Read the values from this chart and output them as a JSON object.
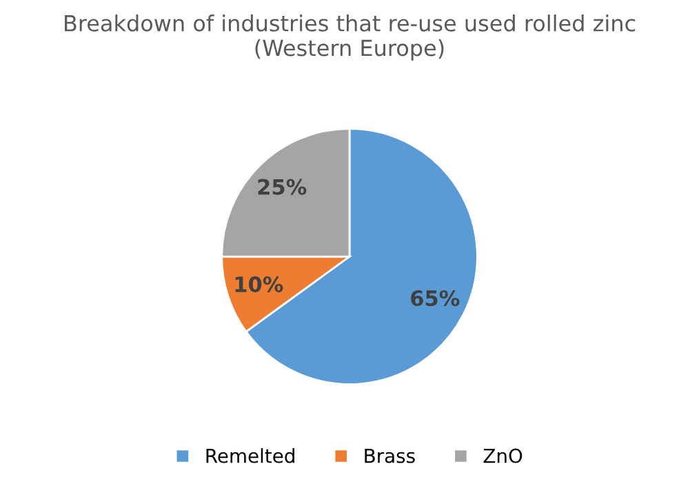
{
  "chart_data": {
    "type": "pie",
    "title": "Breakdown of industries that re-use used rolled zinc\n(Western Europe)",
    "categories": [
      "Remelted",
      "Brass",
      "ZnO"
    ],
    "values": [
      65,
      10,
      25
    ],
    "colors": [
      "#5b9bd5",
      "#ed7d31",
      "#a5a5a5"
    ],
    "value_labels": [
      "65%",
      "10%",
      "25%"
    ],
    "legend": "bottom"
  }
}
